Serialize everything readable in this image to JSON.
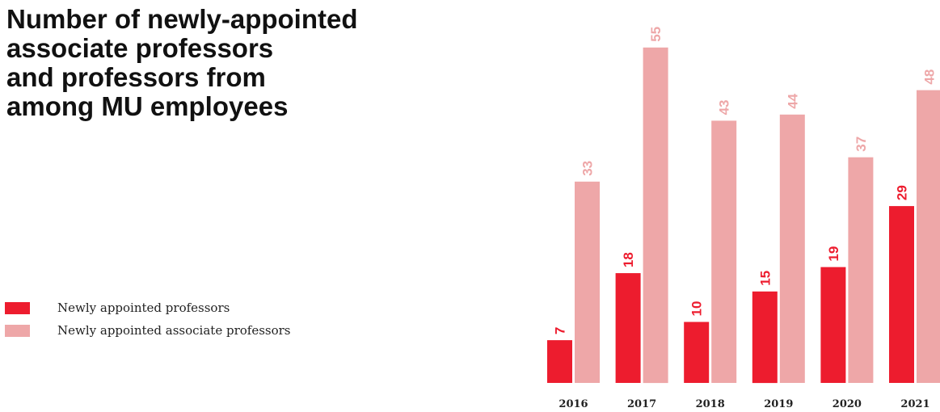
{
  "chart_data": {
    "type": "bar",
    "title_lines": [
      "Number of newly-appointed",
      "associate professors",
      "and professors from",
      "among MU employees"
    ],
    "categories": [
      "2016",
      "2017",
      "2018",
      "2019",
      "2020",
      "2021"
    ],
    "series": [
      {
        "name": "Newly appointed professors",
        "color": "#ed1c2e",
        "values": [
          7,
          18,
          10,
          15,
          19,
          29
        ]
      },
      {
        "name": "Newly appointed associate professors",
        "color": "#eea7a8",
        "values": [
          33,
          55,
          43,
          44,
          37,
          48
        ]
      }
    ],
    "ylim": [
      0,
      60
    ],
    "grid": false,
    "legend_position": "left"
  }
}
